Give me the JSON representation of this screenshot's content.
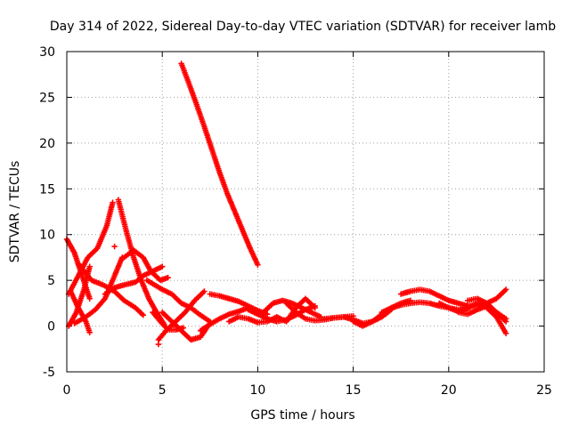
{
  "chart_data": {
    "type": "scatter",
    "title": "Day 314 of 2022, Sidereal Day-to-day VTEC variation (SDTVAR) for receiver lamb",
    "xlabel": "GPS time / hours",
    "ylabel": "SDTVAR / TECUs",
    "xlim": [
      0,
      25
    ],
    "ylim": [
      -5,
      30
    ],
    "xticks": [
      0,
      5,
      10,
      15,
      20,
      25
    ],
    "yticks": [
      -5,
      0,
      5,
      10,
      15,
      20,
      25,
      30
    ],
    "grid": true,
    "marker": "+",
    "color": "#ff0000",
    "tracks": [
      {
        "x": [
          0.0,
          0.4,
          0.8,
          1.2
        ],
        "y": [
          9.5,
          8.0,
          5.5,
          3.0
        ]
      },
      {
        "x": [
          0.1,
          0.6,
          1.1,
          1.6,
          2.1,
          2.4
        ],
        "y": [
          3.5,
          5.5,
          7.5,
          8.5,
          11.0,
          13.5
        ]
      },
      {
        "x": [
          0.1,
          0.5,
          0.9,
          1.2
        ],
        "y": [
          0.0,
          1.5,
          4.0,
          6.5
        ]
      },
      {
        "x": [
          0.2,
          0.6,
          1.0,
          1.2
        ],
        "y": [
          3.8,
          2.0,
          0.5,
          -0.7
        ]
      },
      {
        "x": [
          0.4,
          1.0,
          1.5,
          2.0,
          2.5,
          2.9
        ],
        "y": [
          0.3,
          1.0,
          1.8,
          3.0,
          5.5,
          7.5
        ]
      },
      {
        "x": [
          0.6,
          1.3,
          1.9,
          2.5,
          3.0,
          3.6,
          4.0
        ],
        "y": [
          6.8,
          5.0,
          4.5,
          3.8,
          2.8,
          2.0,
          1.2
        ]
      },
      {
        "x": [
          2.0,
          2.5,
          3.0,
          3.6,
          4.0,
          4.5,
          5.0
        ],
        "y": [
          3.5,
          4.2,
          4.5,
          4.8,
          5.5,
          6.0,
          6.5
        ]
      },
      {
        "x": [
          2.7,
          3.1,
          3.5,
          3.9,
          4.3,
          4.7,
          5.1
        ],
        "y": [
          13.8,
          10.5,
          7.5,
          5.0,
          3.0,
          1.5,
          0.2
        ]
      },
      {
        "x": [
          2.5
        ],
        "y": [
          8.7
        ]
      },
      {
        "x": [
          3.0,
          3.5,
          4.0,
          4.4,
          4.9,
          5.3
        ],
        "y": [
          7.5,
          8.3,
          7.5,
          6.0,
          5.0,
          5.3
        ]
      },
      {
        "x": [
          4.2,
          4.6,
          5.0,
          5.5,
          6.0,
          6.5,
          7.0,
          7.5
        ],
        "y": [
          5.0,
          4.5,
          4.0,
          3.5,
          2.5,
          2.0,
          1.2,
          0.5
        ]
      },
      {
        "x": [
          4.5,
          4.9,
          5.3,
          5.7,
          6.1
        ],
        "y": [
          1.5,
          0.5,
          -0.4,
          -0.4,
          -0.2
        ]
      },
      {
        "x": [
          4.8,
          5.2,
          5.7,
          6.2,
          6.7,
          7.2
        ],
        "y": [
          -1.5,
          -0.5,
          0.5,
          1.5,
          2.8,
          3.8
        ]
      },
      {
        "x": [
          4.8
        ],
        "y": [
          -2.0
        ]
      },
      {
        "x": [
          5.0,
          5.5,
          6.0,
          6.5,
          7.0,
          7.5
        ],
        "y": [
          1.5,
          0.5,
          -0.5,
          -1.5,
          -1.2,
          0.3
        ]
      },
      {
        "x": [
          7.0,
          7.5,
          8.0,
          8.5,
          9.0,
          9.5,
          10.0
        ],
        "y": [
          -0.5,
          0.2,
          0.8,
          1.3,
          1.6,
          2.0,
          1.3
        ]
      },
      {
        "x": [
          7.5,
          8.0,
          8.5,
          9.0,
          9.5,
          10.0,
          10.5
        ],
        "y": [
          3.5,
          3.3,
          3.0,
          2.7,
          2.2,
          1.7,
          1.3
        ]
      },
      {
        "x": [
          6.0,
          6.4,
          6.8,
          7.2,
          7.6,
          8.0,
          8.4,
          8.8,
          9.2,
          9.6,
          10.0
        ],
        "y": [
          28.7,
          26.5,
          24.2,
          21.8,
          19.3,
          16.8,
          14.5,
          12.5,
          10.5,
          8.5,
          6.7
        ]
      },
      {
        "x": [
          8.5,
          9.0,
          9.5,
          10.0,
          10.5,
          11.0
        ],
        "y": [
          0.5,
          1.0,
          0.8,
          0.4,
          0.5,
          1.0
        ]
      },
      {
        "x": [
          9.5,
          10.0,
          10.5,
          11.0,
          11.5,
          12.0,
          12.5,
          13.0
        ],
        "y": [
          1.8,
          1.3,
          0.8,
          0.5,
          0.7,
          1.2,
          1.8,
          2.2
        ]
      },
      {
        "x": [
          10.3,
          10.8,
          11.3,
          11.8,
          12.3,
          12.8,
          13.3
        ],
        "y": [
          1.5,
          2.5,
          2.8,
          2.5,
          2.0,
          1.5,
          1.0
        ]
      },
      {
        "x": [
          11.0,
          11.5,
          12.0,
          12.5,
          13.0
        ],
        "y": [
          1.0,
          0.5,
          2.0,
          3.0,
          2.0
        ]
      },
      {
        "x": [
          11.5,
          12.0,
          12.5,
          13.0,
          13.5,
          14.0,
          14.5,
          15.0
        ],
        "y": [
          2.5,
          1.5,
          0.8,
          0.6,
          0.7,
          0.9,
          1.0,
          1.1
        ]
      },
      {
        "x": [
          13.5,
          14.0,
          14.5,
          15.0,
          15.5,
          16.0,
          16.5,
          17.0
        ],
        "y": [
          0.8,
          0.9,
          1.0,
          0.7,
          0.3,
          0.5,
          1.0,
          1.8
        ]
      },
      {
        "x": [
          15.0,
          15.5,
          16.0,
          16.5,
          17.0,
          17.5,
          18.0
        ],
        "y": [
          0.5,
          0.0,
          0.5,
          1.3,
          2.0,
          2.5,
          2.8
        ]
      },
      {
        "x": [
          16.5,
          17.0,
          17.5,
          18.0,
          18.5,
          19.0,
          19.5,
          20.0,
          20.5,
          21.0
        ],
        "y": [
          1.5,
          2.0,
          2.3,
          2.5,
          2.6,
          2.5,
          2.2,
          2.0,
          1.8,
          1.8
        ]
      },
      {
        "x": [
          17.5,
          18.0,
          18.5,
          19.0,
          19.5,
          20.0,
          20.5,
          21.0,
          21.5,
          22.0,
          22.5,
          23.0
        ],
        "y": [
          3.5,
          3.8,
          4.0,
          3.8,
          3.3,
          2.8,
          2.5,
          2.2,
          2.2,
          2.5,
          3.0,
          4.0
        ]
      },
      {
        "x": [
          19.5,
          20.0,
          20.5,
          21.0,
          21.5,
          22.0,
          22.5,
          23.0
        ],
        "y": [
          2.5,
          2.0,
          1.6,
          2.0,
          2.5,
          2.0,
          1.0,
          -0.8
        ]
      },
      {
        "x": [
          21.0,
          21.5,
          22.0,
          22.5,
          23.0
        ],
        "y": [
          2.8,
          3.0,
          2.5,
          1.5,
          0.5
        ]
      },
      {
        "x": [
          20.5,
          21.0,
          21.5,
          22.0,
          22.5,
          23.0
        ],
        "y": [
          1.5,
          1.3,
          1.8,
          2.2,
          1.5,
          0.8
        ]
      }
    ]
  }
}
